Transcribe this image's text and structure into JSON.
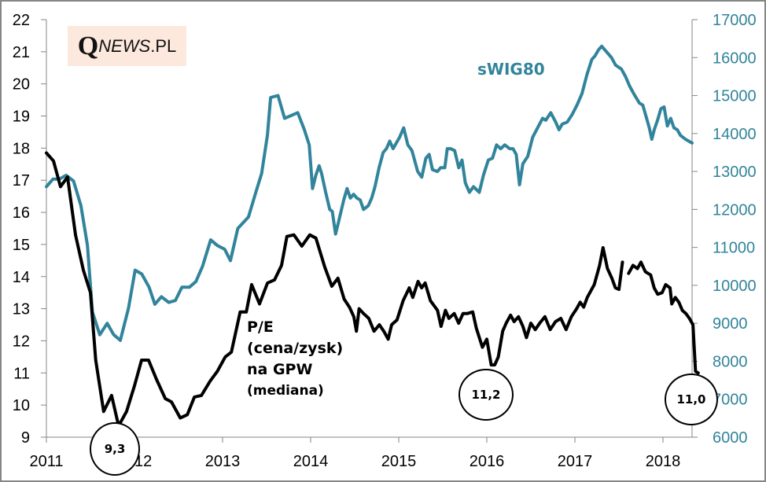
{
  "chart_data": {
    "type": "line",
    "title": "",
    "xlabel": "",
    "ylabel": "",
    "y2label": "",
    "grid": false,
    "x_ticks": [
      "2011",
      "2012",
      "2013",
      "2014",
      "2015",
      "2016",
      "2017",
      "2018"
    ],
    "xlim": [
      2011,
      2018.33
    ],
    "y_left": {
      "ylim": [
        9,
        22
      ],
      "ticks": [
        "9",
        "10",
        "11",
        "12",
        "13",
        "14",
        "15",
        "16",
        "17",
        "18",
        "19",
        "20",
        "21",
        "22"
      ]
    },
    "y_right": {
      "ylim": [
        6000,
        17000
      ],
      "ticks": [
        "6000",
        "7000",
        "8000",
        "9000",
        "10000",
        "11000",
        "12000",
        "13000",
        "14000",
        "15000",
        "16000",
        "17000"
      ],
      "color": "#31849b"
    },
    "series": [
      {
        "name": "P/E (cena/zysk) na GPW (mediana)",
        "axis": "left",
        "color": "#000000",
        "points": [
          [
            2011.0,
            17.85
          ],
          [
            2011.08,
            17.6
          ],
          [
            2011.16,
            16.8
          ],
          [
            2011.24,
            17.1
          ],
          [
            2011.33,
            15.3
          ],
          [
            2011.42,
            14.2
          ],
          [
            2011.5,
            13.5
          ],
          [
            2011.56,
            11.4
          ],
          [
            2011.65,
            9.8
          ],
          [
            2011.74,
            10.3
          ],
          [
            2011.82,
            9.35
          ],
          [
            2011.91,
            9.8
          ],
          [
            2012.0,
            10.6
          ],
          [
            2012.08,
            11.4
          ],
          [
            2012.16,
            11.4
          ],
          [
            2012.25,
            10.8
          ],
          [
            2012.35,
            10.2
          ],
          [
            2012.42,
            10.1
          ],
          [
            2012.52,
            9.6
          ],
          [
            2012.6,
            9.7
          ],
          [
            2012.68,
            10.25
          ],
          [
            2012.76,
            10.3
          ],
          [
            2012.86,
            10.75
          ],
          [
            2012.94,
            11.05
          ],
          [
            2013.03,
            11.5
          ],
          [
            2013.1,
            11.65
          ],
          [
            2013.2,
            12.9
          ],
          [
            2013.27,
            12.9
          ],
          [
            2013.33,
            13.75
          ],
          [
            2013.42,
            13.15
          ],
          [
            2013.51,
            13.8
          ],
          [
            2013.59,
            13.9
          ],
          [
            2013.67,
            14.35
          ],
          [
            2013.73,
            15.25
          ],
          [
            2013.81,
            15.3
          ],
          [
            2013.9,
            14.95
          ],
          [
            2013.99,
            15.3
          ],
          [
            2014.06,
            15.2
          ],
          [
            2014.16,
            14.3
          ],
          [
            2014.24,
            13.7
          ],
          [
            2014.31,
            13.95
          ],
          [
            2014.38,
            13.3
          ],
          [
            2014.44,
            13.05
          ],
          [
            2014.49,
            12.75
          ],
          [
            2014.52,
            12.3
          ],
          [
            2014.55,
            13.0
          ],
          [
            2014.6,
            12.85
          ],
          [
            2014.66,
            12.7
          ],
          [
            2014.72,
            12.3
          ],
          [
            2014.78,
            12.5
          ],
          [
            2014.83,
            12.3
          ],
          [
            2014.88,
            12.05
          ],
          [
            2014.92,
            12.5
          ],
          [
            2014.98,
            12.65
          ],
          [
            2015.05,
            13.25
          ],
          [
            2015.12,
            13.65
          ],
          [
            2015.16,
            13.35
          ],
          [
            2015.22,
            13.85
          ],
          [
            2015.26,
            13.65
          ],
          [
            2015.3,
            13.8
          ],
          [
            2015.36,
            13.25
          ],
          [
            2015.44,
            12.95
          ],
          [
            2015.48,
            12.45
          ],
          [
            2015.53,
            12.95
          ],
          [
            2015.57,
            12.7
          ],
          [
            2015.63,
            12.85
          ],
          [
            2015.68,
            12.55
          ],
          [
            2015.73,
            12.85
          ],
          [
            2015.78,
            12.85
          ],
          [
            2015.84,
            12.9
          ],
          [
            2015.88,
            12.4
          ],
          [
            2015.95,
            11.8
          ],
          [
            2016.0,
            12.05
          ],
          [
            2016.05,
            11.25
          ],
          [
            2016.09,
            11.25
          ],
          [
            2016.13,
            11.5
          ],
          [
            2016.18,
            12.3
          ],
          [
            2016.22,
            12.55
          ],
          [
            2016.27,
            12.8
          ],
          [
            2016.31,
            12.6
          ],
          [
            2016.36,
            12.75
          ],
          [
            2016.41,
            12.45
          ],
          [
            2016.45,
            12.1
          ],
          [
            2016.5,
            12.55
          ],
          [
            2016.55,
            12.35
          ],
          [
            2016.6,
            12.55
          ],
          [
            2016.66,
            12.75
          ],
          [
            2016.72,
            12.35
          ],
          [
            2016.78,
            12.6
          ],
          [
            2016.84,
            12.7
          ],
          [
            2016.9,
            12.35
          ],
          [
            2016.96,
            12.75
          ],
          [
            2017.02,
            13.0
          ],
          [
            2017.06,
            13.2
          ],
          [
            2017.1,
            13.05
          ],
          [
            2017.14,
            13.35
          ],
          [
            2017.18,
            13.55
          ],
          [
            2017.22,
            13.75
          ],
          [
            2017.28,
            14.35
          ],
          [
            2017.32,
            14.9
          ],
          [
            2017.37,
            14.25
          ],
          [
            2017.42,
            13.95
          ],
          [
            2017.46,
            13.65
          ],
          [
            2017.5,
            13.6
          ],
          [
            2017.54,
            14.45
          ]
        ],
        "points_segment2": [
          [
            2017.61,
            14.1
          ],
          [
            2017.66,
            14.35
          ],
          [
            2017.71,
            14.25
          ],
          [
            2017.75,
            14.45
          ],
          [
            2017.8,
            14.15
          ],
          [
            2017.86,
            14.05
          ],
          [
            2017.9,
            13.65
          ],
          [
            2017.94,
            13.45
          ],
          [
            2017.99,
            13.5
          ],
          [
            2018.03,
            13.75
          ],
          [
            2018.08,
            13.65
          ],
          [
            2018.1,
            13.15
          ],
          [
            2018.14,
            13.35
          ],
          [
            2018.18,
            13.2
          ],
          [
            2018.22,
            12.95
          ],
          [
            2018.26,
            12.85
          ],
          [
            2018.3,
            12.7
          ],
          [
            2018.34,
            12.5
          ],
          [
            2018.37,
            11.05
          ],
          [
            2018.4,
            11.0
          ]
        ],
        "annotations": [
          {
            "label": "9,3",
            "x": 2011.82,
            "value": 9.3
          },
          {
            "label": "11,2",
            "x": 2016.0,
            "value": 11.2
          },
          {
            "label": "11,0",
            "x": 2018.4,
            "value": 11.0
          }
        ]
      },
      {
        "name": "sWIG80",
        "axis": "right",
        "color": "#31849b",
        "points": [
          [
            2011.0,
            12600
          ],
          [
            2011.08,
            12800
          ],
          [
            2011.16,
            12800
          ],
          [
            2011.24,
            12900
          ],
          [
            2011.33,
            12750
          ],
          [
            2011.42,
            12100
          ],
          [
            2011.5,
            11050
          ],
          [
            2011.56,
            9300
          ],
          [
            2011.65,
            8700
          ],
          [
            2011.74,
            9000
          ],
          [
            2011.82,
            8700
          ],
          [
            2011.9,
            8550
          ],
          [
            2012.0,
            9400
          ],
          [
            2012.08,
            10400
          ],
          [
            2012.16,
            10300
          ],
          [
            2012.25,
            9950
          ],
          [
            2012.32,
            9500
          ],
          [
            2012.4,
            9700
          ],
          [
            2012.49,
            9550
          ],
          [
            2012.57,
            9600
          ],
          [
            2012.65,
            9950
          ],
          [
            2012.74,
            9950
          ],
          [
            2012.82,
            10100
          ],
          [
            2012.9,
            10500
          ],
          [
            2013.0,
            11200
          ],
          [
            2013.08,
            11050
          ],
          [
            2013.17,
            10950
          ],
          [
            2013.24,
            10650
          ],
          [
            2013.33,
            11500
          ],
          [
            2013.46,
            11800
          ],
          [
            2013.55,
            12450
          ],
          [
            2013.62,
            12950
          ],
          [
            2013.69,
            13950
          ],
          [
            2013.73,
            14950
          ],
          [
            2013.82,
            15000
          ],
          [
            2013.9,
            14400
          ],
          [
            2014.06,
            14550
          ],
          [
            2014.14,
            14100
          ],
          [
            2014.2,
            13700
          ],
          [
            2014.24,
            12550
          ],
          [
            2014.28,
            12900
          ],
          [
            2014.32,
            13150
          ],
          [
            2014.35,
            12950
          ],
          [
            2014.4,
            12450
          ],
          [
            2014.45,
            12000
          ],
          [
            2014.48,
            11950
          ],
          [
            2014.52,
            11350
          ],
          [
            2014.56,
            11700
          ],
          [
            2014.62,
            12250
          ],
          [
            2014.66,
            12550
          ],
          [
            2014.7,
            12300
          ],
          [
            2014.74,
            12400
          ],
          [
            2014.78,
            12300
          ],
          [
            2014.82,
            12250
          ],
          [
            2014.86,
            12000
          ],
          [
            2014.92,
            12100
          ],
          [
            2014.96,
            12300
          ],
          [
            2015.0,
            12600
          ],
          [
            2015.05,
            13100
          ],
          [
            2015.1,
            13500
          ],
          [
            2015.14,
            13600
          ],
          [
            2015.18,
            13800
          ],
          [
            2015.22,
            13600
          ],
          [
            2015.3,
            13900
          ],
          [
            2015.35,
            14150
          ],
          [
            2015.4,
            13700
          ],
          [
            2015.45,
            13550
          ],
          [
            2015.52,
            13000
          ],
          [
            2015.57,
            12850
          ],
          [
            2015.62,
            13350
          ],
          [
            2015.66,
            13450
          ],
          [
            2015.7,
            13050
          ],
          [
            2015.76,
            13000
          ],
          [
            2015.8,
            13100
          ],
          [
            2015.85,
            13100
          ],
          [
            2015.88,
            13600
          ],
          [
            2015.92,
            13600
          ],
          [
            2015.97,
            13550
          ],
          [
            2016.02,
            13100
          ],
          [
            2016.06,
            13300
          ],
          [
            2016.1,
            12700
          ],
          [
            2016.15,
            12450
          ],
          [
            2016.2,
            12600
          ],
          [
            2016.27,
            12450
          ],
          [
            2016.32,
            12900
          ],
          [
            2016.38,
            13300
          ],
          [
            2016.43,
            13350
          ],
          [
            2016.48,
            13700
          ],
          [
            2016.53,
            13600
          ],
          [
            2016.58,
            13700
          ],
          [
            2016.64,
            13600
          ],
          [
            2016.68,
            13600
          ],
          [
            2016.72,
            13450
          ],
          [
            2016.76,
            12650
          ],
          [
            2016.8,
            13200
          ],
          [
            2016.86,
            13400
          ],
          [
            2016.92,
            13900
          ],
          [
            2016.98,
            14150
          ],
          [
            2017.04,
            14400
          ],
          [
            2017.08,
            14350
          ],
          [
            2017.14,
            14550
          ],
          [
            2017.2,
            14300
          ],
          [
            2017.24,
            14100
          ],
          [
            2017.28,
            14250
          ],
          [
            2017.34,
            14300
          ],
          [
            2017.4,
            14500
          ],
          [
            2017.46,
            14750
          ],
          [
            2017.52,
            15050
          ],
          [
            2017.58,
            15550
          ],
          [
            2017.64,
            15950
          ],
          [
            2017.68,
            16050
          ],
          [
            2017.72,
            16200
          ],
          [
            2017.76,
            16300
          ],
          [
            2017.8,
            16200
          ],
          [
            2017.84,
            16100
          ],
          [
            2017.88,
            16000
          ],
          [
            2017.93,
            15800
          ],
          [
            2018.0,
            15700
          ],
          [
            2018.05,
            15500
          ],
          [
            2018.1,
            15250
          ],
          [
            2018.15,
            15050
          ],
          [
            2018.22,
            14800
          ],
          [
            2018.26,
            14750
          ],
          [
            2018.3,
            14450
          ],
          [
            2018.34,
            14150
          ],
          [
            2018.37,
            13850
          ],
          [
            2018.4,
            14100
          ],
          [
            2018.44,
            14350
          ],
          [
            2018.48,
            14650
          ],
          [
            2018.52,
            14700
          ],
          [
            2018.56,
            14200
          ],
          [
            2018.6,
            14400
          ],
          [
            2018.64,
            14150
          ],
          [
            2018.68,
            14100
          ],
          [
            2018.72,
            13950
          ],
          [
            2018.78,
            13850
          ],
          [
            2018.82,
            13800
          ],
          [
            2018.86,
            13750
          ]
        ]
      }
    ]
  },
  "labels": {
    "logo_q": "Q",
    "logo_news": "NEWS",
    "logo_pl": ".PL",
    "swig_label": "sWIG80",
    "pe_line1": "P/E",
    "pe_line2": "(cena/zysk)",
    "pe_line3": "na GPW",
    "pe_line4": "(mediana)"
  }
}
